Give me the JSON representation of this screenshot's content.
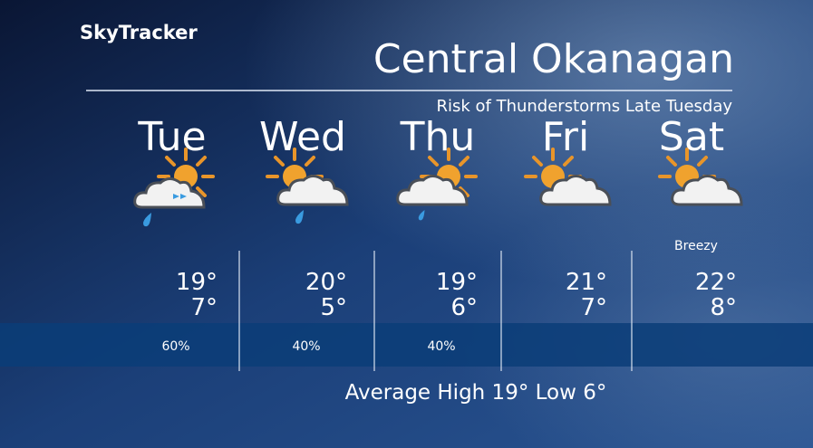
{
  "header": {
    "brand": "SkyTracker",
    "title": "Central Okanagan",
    "subtitle": "Risk of Thunderstorms Late Tuesday"
  },
  "days": [
    {
      "name": "Tue",
      "high": "19°",
      "low": "7°",
      "precip": "60%"
    },
    {
      "name": "Wed",
      "high": "20°",
      "low": "5°",
      "precip": "40%"
    },
    {
      "name": "Thu",
      "high": "19°",
      "low": "6°",
      "precip": "40%"
    },
    {
      "name": "Fri",
      "high": "21°",
      "low": "7°"
    },
    {
      "name": "Sat",
      "high": "22°",
      "low": "8°",
      "note": "Breezy"
    }
  ],
  "footer": "Average High 19° Low 6°"
}
